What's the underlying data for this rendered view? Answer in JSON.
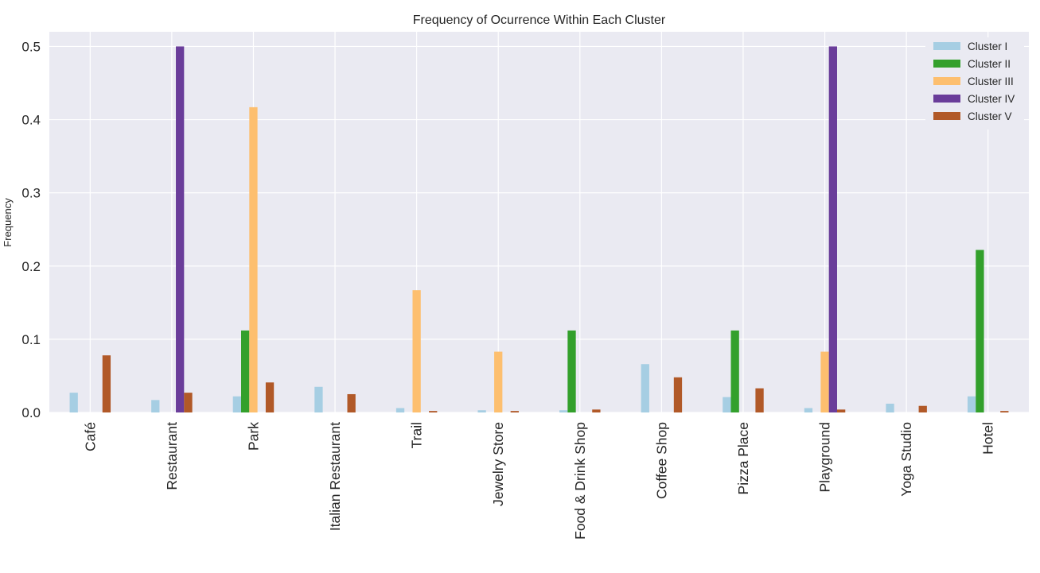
{
  "chart_data": {
    "type": "bar",
    "title": "Frequency of Ocurrence Within Each Cluster",
    "xlabel": "",
    "ylabel": "Frequency",
    "ylim": [
      0,
      0.52
    ],
    "yticks": [
      0.0,
      0.1,
      0.2,
      0.3,
      0.4,
      0.5
    ],
    "ytick_labels": [
      "0.0",
      "0.1",
      "0.2",
      "0.3",
      "0.4",
      "0.5"
    ],
    "grid": true,
    "legend_position": "top-right",
    "categories": [
      "Café",
      "Restaurant",
      "Park",
      "Italian Restaurant",
      "Trail",
      "Jewelry Store",
      "Food & Drink Shop",
      "Coffee Shop",
      "Pizza Place",
      "Playground",
      "Yoga Studio",
      "Hotel"
    ],
    "series": [
      {
        "name": "Cluster I",
        "color": "#a6cee3",
        "values": [
          0.027,
          0.017,
          0.022,
          0.035,
          0.006,
          0.003,
          0.003,
          0.066,
          0.021,
          0.006,
          0.012,
          0.022
        ]
      },
      {
        "name": "Cluster II",
        "color": "#33a02c",
        "values": [
          0,
          0,
          0.112,
          0,
          0,
          0,
          0.112,
          0,
          0.112,
          0,
          0,
          0.222
        ]
      },
      {
        "name": "Cluster III",
        "color": "#fdbf6f",
        "values": [
          0,
          0,
          0.417,
          0,
          0.167,
          0.083,
          0,
          0,
          0,
          0.083,
          0,
          0
        ]
      },
      {
        "name": "Cluster IV",
        "color": "#6a3d9a",
        "values": [
          0,
          0.5,
          0,
          0,
          0,
          0,
          0,
          0,
          0,
          0.5,
          0,
          0
        ]
      },
      {
        "name": "Cluster V",
        "color": "#b15928",
        "values": [
          0.078,
          0.027,
          0.041,
          0.025,
          0.002,
          0.002,
          0.004,
          0.048,
          0.033,
          0.004,
          0.009,
          0.002
        ]
      }
    ]
  }
}
